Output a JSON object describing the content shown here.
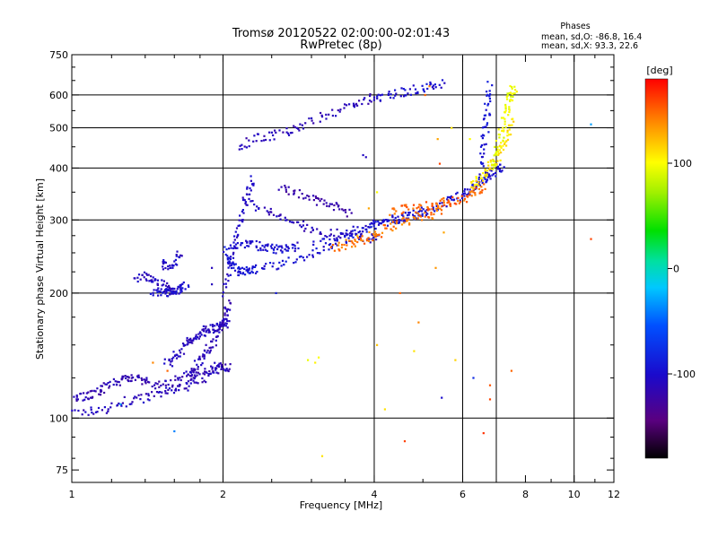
{
  "chart_data": {
    "type": "scatter",
    "title": "Tromsø 20120522 02:00:00-02:01:43",
    "subtitle": "RwPretec (8p)",
    "xlabel": "Frequency [MHz]",
    "ylabel": "Stationary phase Virtual Height [km]",
    "x_scale": "log",
    "y_scale": "log",
    "xlim": [
      1,
      12
    ],
    "ylim": [
      70,
      750
    ],
    "x_ticks": [
      1,
      2,
      4,
      6,
      8,
      10,
      12
    ],
    "x_tick_labels": [
      "1",
      "2",
      "4",
      "6",
      "8",
      "10",
      "12"
    ],
    "x_grid": [
      2,
      4,
      6,
      7,
      10
    ],
    "y_ticks": [
      75,
      100,
      200,
      300,
      400,
      500,
      600,
      750
    ],
    "y_tick_labels": [
      "75",
      "100",
      "200",
      "300",
      "400",
      "500",
      "600",
      "750"
    ],
    "y_grid": [
      100,
      200,
      300,
      400,
      500,
      600
    ],
    "grid": true,
    "stats": {
      "heading": "Phases",
      "line1": "mean, sd,O: -86.8, 16.4",
      "line2": "mean, sd,X:  93.3, 22.6"
    },
    "colorbar": {
      "label": "[deg]",
      "min": -180,
      "max": 180,
      "ticks": [
        100,
        0,
        -100
      ],
      "tick_labels": [
        "100",
        "0",
        "-100"
      ]
    },
    "traces": [
      {
        "x": [
          1.0,
          1.1,
          1.2,
          1.3,
          1.4,
          1.5,
          1.6,
          1.7,
          1.8,
          1.9,
          2.0,
          2.05
        ],
        "y": [
          103,
          104,
          106,
          110,
          112,
          114,
          117,
          120,
          124,
          128,
          132,
          134
        ],
        "phase": -110
      },
      {
        "x": [
          1.0,
          1.05,
          1.1,
          1.15,
          1.2,
          1.25,
          1.3,
          1.35,
          1.4,
          1.5,
          1.6,
          1.7,
          1.8,
          1.9,
          2.0
        ],
        "y": [
          112,
          113,
          114,
          117,
          120,
          124,
          126,
          124,
          122,
          120,
          122,
          126,
          130,
          132,
          134
        ],
        "phase": -115
      },
      {
        "x": [
          1.55,
          1.6,
          1.65,
          1.7,
          1.75,
          1.8,
          1.85,
          1.9,
          1.95,
          2.0,
          2.05
        ],
        "y": [
          135,
          140,
          146,
          152,
          156,
          160,
          163,
          165,
          167,
          168,
          170
        ],
        "phase": -108
      },
      {
        "x": [
          1.7,
          1.75,
          1.8,
          1.85,
          1.9,
          1.95,
          2.0,
          2.02,
          2.05
        ],
        "y": [
          125,
          130,
          138,
          145,
          150,
          160,
          170,
          180,
          190
        ],
        "phase": -112
      },
      {
        "x": [
          1.35,
          1.4,
          1.45,
          1.5,
          1.55,
          1.6,
          1.62
        ],
        "y": [
          218,
          220,
          216,
          210,
          206,
          202,
          205
        ],
        "phase": -110
      },
      {
        "x": [
          1.5,
          1.55,
          1.6,
          1.65
        ],
        "y": [
          235,
          232,
          238,
          250
        ],
        "phase": -105
      },
      {
        "x": [
          1.45,
          1.5,
          1.55,
          1.6,
          1.65,
          1.7
        ],
        "y": [
          200,
          201,
          200,
          202,
          206,
          212
        ],
        "phase": -100
      },
      {
        "x": [
          2.0,
          2.05,
          2.1,
          2.15,
          2.2,
          2.25,
          2.3,
          2.5,
          2.7,
          3.0,
          3.3,
          3.6,
          3.9,
          4.2,
          4.5,
          4.8,
          5.1
        ],
        "y": [
          255,
          240,
          232,
          226,
          225,
          226,
          227,
          232,
          238,
          250,
          262,
          275,
          287,
          296,
          302,
          308,
          314
        ],
        "phase": -95
      },
      {
        "x": [
          2.1,
          2.2,
          2.3,
          2.4,
          2.5,
          2.6,
          2.7,
          2.8
        ],
        "y": [
          260,
          265,
          262,
          258,
          256,
          254,
          256,
          260
        ],
        "phase": -100
      },
      {
        "x": [
          2.2,
          2.4,
          2.6,
          2.8,
          3.0,
          3.3,
          3.6,
          3.9,
          4.1
        ],
        "y": [
          330,
          320,
          305,
          295,
          285,
          278,
          275,
          272,
          270
        ],
        "phase": -110
      },
      {
        "x": [
          3.0,
          3.3,
          3.6,
          3.9,
          4.2,
          4.5,
          4.8,
          5.1,
          5.4,
          5.7,
          6.0,
          6.2,
          6.4,
          6.6,
          6.8,
          7.0,
          7.2
        ],
        "y": [
          260,
          270,
          280,
          290,
          298,
          304,
          310,
          316,
          325,
          335,
          345,
          355,
          365,
          375,
          385,
          395,
          405
        ],
        "phase": -100
      },
      {
        "x": [
          3.3,
          3.5,
          3.7,
          3.9,
          4.1,
          4.3,
          4.6,
          4.9,
          5.2,
          5.5
        ],
        "y": [
          258,
          262,
          266,
          272,
          280,
          290,
          298,
          304,
          310,
          318
        ],
        "phase": 145
      },
      {
        "x": [
          4.3,
          4.6,
          4.9,
          5.2,
          5.5,
          5.8,
          6.1,
          6.4,
          6.7
        ],
        "y": [
          315,
          318,
          322,
          325,
          330,
          335,
          340,
          350,
          360
        ],
        "phase": 150
      },
      {
        "x": [
          6.2,
          6.4,
          6.6,
          6.8,
          7.0,
          7.2,
          7.4,
          7.6
        ],
        "y": [
          360,
          370,
          385,
          400,
          420,
          450,
          480,
          520
        ],
        "phase": 110
      },
      {
        "x": [
          6.9,
          7.0,
          7.1,
          7.2,
          7.3,
          7.4,
          7.5,
          7.6
        ],
        "y": [
          400,
          430,
          460,
          500,
          540,
          580,
          610,
          630
        ],
        "phase": 95
      },
      {
        "x": [
          6.55,
          6.6,
          6.65,
          6.7,
          6.75,
          6.8
        ],
        "y": [
          380,
          430,
          480,
          530,
          580,
          640
        ],
        "phase": -95
      },
      {
        "x": [
          2.15,
          2.3,
          2.5,
          2.7,
          2.9,
          3.2,
          3.5,
          3.8,
          4.0
        ],
        "y": [
          440,
          470,
          480,
          490,
          510,
          535,
          560,
          580,
          590
        ],
        "phase": -112
      },
      {
        "x": [
          4.0,
          4.3,
          4.6,
          4.9,
          5.2,
          5.5
        ],
        "y": [
          590,
          600,
          610,
          620,
          630,
          640
        ],
        "phase": -100
      },
      {
        "x": [
          2.0,
          2.05,
          2.1,
          2.15,
          2.2,
          2.25,
          2.3
        ],
        "y": [
          200,
          230,
          260,
          290,
          320,
          350,
          380
        ],
        "phase": -105
      },
      {
        "x": [
          2.6,
          2.8,
          3.0,
          3.2,
          3.4,
          3.6
        ],
        "y": [
          360,
          350,
          340,
          330,
          320,
          310
        ],
        "phase": -120
      }
    ],
    "scattered": [
      {
        "x": 3.05,
        "y": 136,
        "phase": 105
      },
      {
        "x": 3.1,
        "y": 140,
        "phase": 100
      },
      {
        "x": 2.95,
        "y": 138,
        "phase": 95
      },
      {
        "x": 3.8,
        "y": 430,
        "phase": -105
      },
      {
        "x": 3.85,
        "y": 425,
        "phase": -110
      },
      {
        "x": 4.5,
        "y": 200,
        "phase": 150
      },
      {
        "x": 4.9,
        "y": 170,
        "phase": 140
      },
      {
        "x": 5.3,
        "y": 230,
        "phase": 135
      },
      {
        "x": 5.5,
        "y": 280,
        "phase": 130
      },
      {
        "x": 5.4,
        "y": 410,
        "phase": 160
      },
      {
        "x": 4.05,
        "y": 150,
        "phase": 120
      },
      {
        "x": 4.8,
        "y": 145,
        "phase": 110
      },
      {
        "x": 5.8,
        "y": 138,
        "phase": 115
      },
      {
        "x": 6.3,
        "y": 125,
        "phase": -80
      },
      {
        "x": 6.8,
        "y": 120,
        "phase": 155
      },
      {
        "x": 6.8,
        "y": 111,
        "phase": 160
      },
      {
        "x": 6.6,
        "y": 92,
        "phase": 165
      },
      {
        "x": 5.45,
        "y": 112,
        "phase": -100
      },
      {
        "x": 1.25,
        "y": 108,
        "phase": -30
      },
      {
        "x": 1.6,
        "y": 93,
        "phase": -40
      },
      {
        "x": 1.55,
        "y": 130,
        "phase": 150
      },
      {
        "x": 1.9,
        "y": 210,
        "phase": -110
      },
      {
        "x": 1.9,
        "y": 230,
        "phase": -110
      },
      {
        "x": 1.45,
        "y": 136,
        "phase": 140
      },
      {
        "x": 2.55,
        "y": 200,
        "phase": -90
      },
      {
        "x": 3.15,
        "y": 81,
        "phase": 110
      },
      {
        "x": 4.2,
        "y": 105,
        "phase": 110
      },
      {
        "x": 4.6,
        "y": 88,
        "phase": 160
      },
      {
        "x": 5.05,
        "y": 600,
        "phase": 150
      },
      {
        "x": 5.15,
        "y": 630,
        "phase": 140
      },
      {
        "x": 5.35,
        "y": 470,
        "phase": 130
      },
      {
        "x": 6.2,
        "y": 470,
        "phase": 100
      },
      {
        "x": 5.7,
        "y": 500,
        "phase": 110
      },
      {
        "x": 10.8,
        "y": 510,
        "phase": -30
      },
      {
        "x": 10.8,
        "y": 270,
        "phase": 160
      },
      {
        "x": 7.5,
        "y": 130,
        "phase": 150
      },
      {
        "x": 3.9,
        "y": 320,
        "phase": 130
      },
      {
        "x": 3.7,
        "y": 275,
        "phase": 120
      },
      {
        "x": 4.05,
        "y": 350,
        "phase": 100
      },
      {
        "x": 4.6,
        "y": 325,
        "phase": 150
      }
    ]
  }
}
